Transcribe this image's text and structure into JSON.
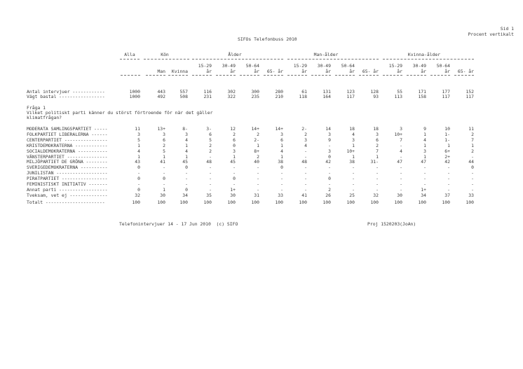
{
  "header": {
    "page": "Sid 1",
    "note": "Procent vertikalt",
    "title": "SIFOs Telefonbuss 2010"
  },
  "groups": {
    "alla": "Alla",
    "kon": "Kön",
    "alder": "Ålder",
    "man_alder": "Man-ålder",
    "kvinna_alder": "Kvinna-ålder"
  },
  "col_top": [
    "",
    "",
    "",
    "15-29",
    "30-49",
    "50-64",
    "",
    "15-29",
    "30-49",
    "50-64",
    "",
    "15-29",
    "30-49",
    "50-64",
    ""
  ],
  "col_bottom": [
    "",
    "Man",
    "Kvinna",
    "år",
    "år",
    "år",
    "65- år",
    "år",
    "år",
    "år",
    "65- år",
    "år",
    "år",
    "år",
    "65- år"
  ],
  "counts": [
    {
      "label": "Antal intervjuer ------------",
      "values": [
        "1000",
        "443",
        "557",
        "116",
        "302",
        "300",
        "280",
        "61",
        "131",
        "123",
        "128",
        "55",
        "171",
        "177",
        "152"
      ]
    },
    {
      "label": "Vägt bastal -----------------",
      "values": [
        "1000",
        "492",
        "508",
        "231",
        "322",
        "235",
        "210",
        "118",
        "164",
        "117",
        "93",
        "113",
        "158",
        "117",
        "117"
      ]
    }
  ],
  "question": {
    "number": "Fråga 1",
    "text1": "Vilket politiskt parti känner du störst förtroende för när det gäller",
    "text2": "klimatfrågan?"
  },
  "rows": [
    {
      "label": "MODERATA SAMLINGSPARTIET -----",
      "values": [
        "11",
        "13+",
        "8-",
        "3-",
        "12",
        "14+",
        "14+",
        "2-",
        "14",
        "18",
        "18",
        "3",
        "9",
        "10",
        "11"
      ]
    },
    {
      "label": "FOLKPARTIET LIBERALERNA ------",
      "values": [
        "3",
        "3",
        "3",
        "6",
        "2",
        "2",
        "3",
        "2",
        "3",
        "4",
        "3",
        "10+",
        "1",
        "1-",
        "2"
      ]
    },
    {
      "label": "CENTERPARTIET ----------------",
      "values": [
        "5",
        "6",
        "4",
        "5",
        "6",
        "2-",
        "6",
        "3",
        "9",
        "3",
        "6",
        "7",
        "4",
        "1-",
        "7"
      ]
    },
    {
      "label": "KRISTDEMOKRATERNA ------------",
      "values": [
        "1",
        "2",
        "1",
        "2",
        "0",
        "1",
        "1",
        "4",
        "-",
        "1",
        "2",
        "-",
        "1",
        "1",
        "1"
      ]
    },
    {
      "label": "SOCIALDEMOKRATERNA -----------",
      "values": [
        "4",
        "5",
        "4",
        "2",
        "3",
        "8+",
        "4",
        "-",
        "3",
        "10+",
        "7",
        "4",
        "3",
        "6+",
        "2"
      ]
    },
    {
      "label": "VÄNSTERPARTIET ---------------",
      "values": [
        "1",
        "1",
        "1",
        "-",
        "1",
        "2",
        "1",
        "-",
        "0",
        "1",
        "1",
        "-",
        "1",
        "2+",
        "-"
      ]
    },
    {
      "label": "MILJÖPARTIET DE GRÖNA --------",
      "values": [
        "43",
        "41",
        "45",
        "48",
        "45",
        "40",
        "38",
        "48",
        "42",
        "38",
        "31-",
        "47",
        "47",
        "42",
        "44"
      ]
    },
    {
      "label": "SVERIGEDEMOKRATERNA ----------",
      "values": [
        "0",
        "-",
        "0",
        "-",
        "-",
        "-",
        "0",
        "-",
        "-",
        "-",
        "-",
        "-",
        "-",
        "-",
        "0"
      ]
    },
    {
      "label": "JUNILISTAN -------------------",
      "values": [
        "-",
        "-",
        "-",
        "-",
        "-",
        "-",
        "-",
        "-",
        "-",
        "-",
        "-",
        "-",
        "-",
        "-",
        "-"
      ]
    },
    {
      "label": "PIRATPARTIET -----------------",
      "values": [
        "0",
        "0",
        "-",
        "-",
        "0",
        "-",
        "-",
        "-",
        "0",
        "-",
        "-",
        "-",
        "-",
        "-",
        "-"
      ]
    },
    {
      "label": "FEMINISTISKT INITIATIV -------",
      "values": [
        "-",
        "-",
        "-",
        "-",
        "-",
        "-",
        "-",
        "-",
        "-",
        "-",
        "-",
        "-",
        "-",
        "-",
        "-"
      ]
    },
    {
      "label": "Annat parti ------------------",
      "values": [
        "0",
        "1",
        "0",
        "-",
        "1+",
        "-",
        "-",
        "-",
        "2",
        "-",
        "-",
        "-",
        "1+",
        "-",
        "-"
      ]
    },
    {
      "label": "Tveksam, vet ej --------------",
      "values": [
        "32",
        "30",
        "34",
        "35",
        "30",
        "31",
        "33",
        "41",
        "26",
        "25",
        "32",
        "30",
        "34",
        "37",
        "33"
      ]
    }
  ],
  "total": {
    "label": "Totalt ----------------------",
    "values": [
      "100",
      "100",
      "100",
      "100",
      "100",
      "100",
      "100",
      "100",
      "100",
      "100",
      "100",
      "100",
      "100",
      "100",
      "100"
    ]
  },
  "footer": {
    "left": "Telefonintervjuer 14 - 17 Jun 2010  (c) SIFO",
    "right": "Proj 1520203(JoAn)"
  }
}
